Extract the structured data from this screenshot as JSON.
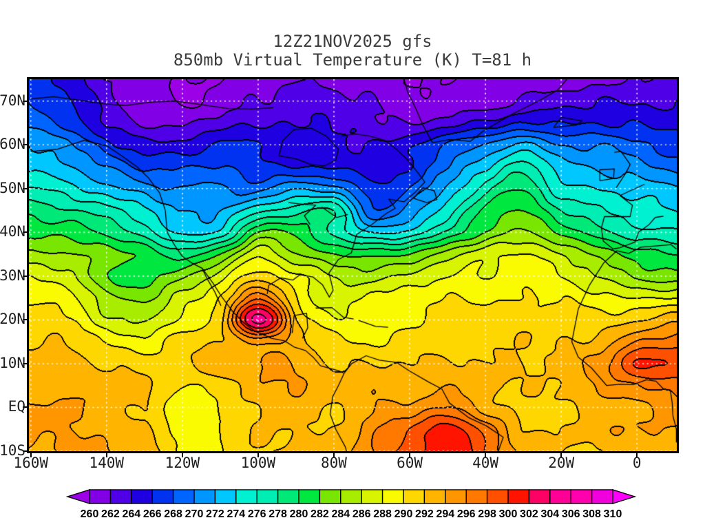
{
  "page": {
    "background": "#FFFFFF"
  },
  "chart_data": {
    "type": "heatmap",
    "title_line1": "12Z21NOV2025 gfs",
    "title_line2": "850mb Virtual Temperature (K) T=81 h",
    "model": "gfs",
    "valid_time": "12Z21NOV2025",
    "level": "850mb",
    "variable": "Virtual Temperature (K)",
    "forecast_hour": "T=81 h",
    "lon_range": [
      -160.5,
      10.5
    ],
    "lat_range": [
      -10,
      75
    ],
    "grid_lines": {
      "lat_interval": 10,
      "lon_interval": 20,
      "style": "dotted-white"
    },
    "x_ticks": [
      {
        "label": "160W",
        "lon": -160
      },
      {
        "label": "140W",
        "lon": -140
      },
      {
        "label": "120W",
        "lon": -120
      },
      {
        "label": "100W",
        "lon": -100
      },
      {
        "label": "80W",
        "lon": -80
      },
      {
        "label": "60W",
        "lon": -60
      },
      {
        "label": "40W",
        "lon": -40
      },
      {
        "label": "20W",
        "lon": -20
      },
      {
        "label": "0",
        "lon": 0
      }
    ],
    "y_ticks": [
      {
        "label": "70N",
        "lat": 70
      },
      {
        "label": "60N",
        "lat": 60
      },
      {
        "label": "50N",
        "lat": 50
      },
      {
        "label": "40N",
        "lat": 40
      },
      {
        "label": "30N",
        "lat": 30
      },
      {
        "label": "20N",
        "lat": 20
      },
      {
        "label": "10N",
        "lat": 10
      },
      {
        "label": "EQ",
        "lat": 0
      },
      {
        "label": "10S",
        "lat": -10
      }
    ],
    "colorbar": {
      "units": "K",
      "levels": [
        260,
        262,
        264,
        266,
        268,
        270,
        272,
        274,
        276,
        278,
        280,
        282,
        284,
        286,
        288,
        290,
        292,
        294,
        296,
        298,
        300,
        302,
        304,
        306,
        308,
        310
      ],
      "colors": [
        "#9C00E6",
        "#8200E6",
        "#5000E6",
        "#1E00E0",
        "#0032F0",
        "#0064FF",
        "#0096FF",
        "#00C8FF",
        "#00F0D2",
        "#00EEB4",
        "#00E878",
        "#00E840",
        "#78E600",
        "#A8EC00",
        "#D8F400",
        "#FAFA00",
        "#FFD700",
        "#FFB400",
        "#FF9600",
        "#FF7800",
        "#FF5000",
        "#FF1400",
        "#FF0064",
        "#FF0096",
        "#FF00AF",
        "#F000DC",
        "#FF00FF"
      ]
    },
    "field": {
      "lons": [
        -160,
        -150,
        -140,
        -130,
        -120,
        -110,
        -100,
        -90,
        -80,
        -70,
        -60,
        -50,
        -40,
        -30,
        -20,
        -10,
        0,
        10
      ],
      "lats": [
        75,
        70,
        65,
        60,
        55,
        50,
        45,
        40,
        35,
        30,
        25,
        20,
        15,
        10,
        5,
        0,
        -5,
        -10
      ],
      "values": [
        [
          267,
          265,
          262,
          261,
          260,
          260,
          261,
          262,
          261,
          261,
          260,
          260,
          261,
          261,
          261,
          261,
          262,
          262
        ],
        [
          268,
          266,
          263,
          261,
          260,
          261,
          262,
          263,
          263,
          262,
          261,
          261,
          261,
          262,
          263,
          264,
          264,
          264
        ],
        [
          270,
          267,
          264,
          262,
          262,
          263,
          264,
          264,
          264,
          263,
          262,
          263,
          265,
          266,
          266,
          266,
          266,
          265
        ],
        [
          272,
          270,
          267,
          265,
          265,
          266,
          266,
          265,
          265,
          264,
          266,
          268,
          270,
          272,
          270,
          270,
          269,
          267
        ],
        [
          274,
          272,
          270,
          268,
          268,
          268,
          267,
          266,
          266,
          265,
          266,
          270,
          274,
          277,
          273,
          272,
          271,
          269
        ],
        [
          276,
          275,
          273,
          271,
          270,
          270,
          269,
          272,
          271,
          267,
          268,
          272,
          277,
          280,
          275,
          274,
          273,
          272
        ],
        [
          279,
          278,
          277,
          274,
          272,
          272,
          275,
          277,
          278,
          268,
          271,
          275,
          280,
          282,
          278,
          276,
          275,
          274
        ],
        [
          281,
          281,
          280,
          277,
          274,
          274,
          282,
          281,
          278,
          274,
          275,
          278,
          282,
          284,
          282,
          279,
          277,
          276
        ],
        [
          284,
          284,
          283,
          281,
          279,
          282,
          287,
          284,
          282,
          281,
          282,
          285,
          287,
          288,
          286,
          283,
          281,
          280
        ],
        [
          288,
          286,
          282,
          281,
          284,
          287,
          291,
          288,
          286,
          285,
          287,
          288,
          288,
          289,
          288,
          286,
          284,
          283
        ],
        [
          290,
          289,
          285,
          284,
          287,
          290,
          298,
          290,
          287,
          289,
          289,
          290,
          290,
          290,
          290,
          289,
          288,
          288
        ],
        [
          291,
          290,
          287,
          286,
          289,
          291,
          305,
          292,
          289,
          289,
          290,
          290,
          291,
          291,
          291,
          291,
          292,
          293
        ],
        [
          292,
          292,
          290,
          289,
          291,
          292,
          295,
          293,
          291,
          290,
          291,
          291,
          292,
          292,
          292,
          293,
          296,
          297
        ],
        [
          293,
          293,
          292,
          291,
          291,
          293,
          294,
          294,
          292,
          292,
          292,
          292,
          292,
          292,
          293,
          295,
          300,
          299
        ],
        [
          293,
          293,
          293,
          292,
          290,
          291,
          293,
          294,
          293,
          293,
          293,
          294,
          292,
          292,
          292,
          294,
          296,
          297
        ],
        [
          294,
          294,
          293,
          292,
          289,
          290,
          292,
          293,
          292,
          294,
          295,
          296,
          293,
          291,
          292,
          293,
          294,
          295
        ],
        [
          294,
          294,
          293,
          292,
          289,
          290,
          292,
          292,
          292,
          295,
          298,
          301,
          297,
          292,
          292,
          293,
          294,
          294
        ],
        [
          294,
          294,
          294,
          293,
          290,
          290,
          292,
          292,
          293,
          296,
          299,
          302,
          298,
          293,
          292,
          292,
          293,
          294
        ]
      ]
    },
    "coastlines": [
      [
        [
          -160,
          58.5
        ],
        [
          -153,
          59
        ],
        [
          -146,
          61
        ],
        [
          -140,
          59.8
        ],
        [
          -136,
          57.5
        ],
        [
          -132,
          55
        ],
        [
          -129,
          52.5
        ],
        [
          -126,
          49
        ],
        [
          -124.5,
          45
        ],
        [
          -124,
          40
        ],
        [
          -122,
          37
        ],
        [
          -120,
          34.5
        ],
        [
          -117.5,
          33
        ],
        [
          -114.8,
          31.8
        ],
        [
          -112,
          28.5
        ],
        [
          -109.8,
          25.5
        ],
        [
          -106.8,
          22
        ],
        [
          -104,
          19.5
        ],
        [
          -101,
          17.5
        ],
        [
          -96.5,
          15.8
        ],
        [
          -93,
          15.2
        ],
        [
          -90.5,
          13.8
        ],
        [
          -87.5,
          13
        ],
        [
          -85.5,
          11.5
        ],
        [
          -83.5,
          9.5
        ],
        [
          -80.5,
          8.8
        ],
        [
          -78.5,
          8.3
        ],
        [
          -77.3,
          7.8
        ]
      ],
      [
        [
          -114.8,
          31.8
        ],
        [
          -113.5,
          29.5
        ],
        [
          -111.5,
          26.5
        ],
        [
          -109.8,
          23.2
        ]
      ],
      [
        [
          -77.3,
          7.8
        ],
        [
          -78.8,
          5
        ],
        [
          -80.3,
          2.5
        ],
        [
          -81,
          -1.5
        ],
        [
          -79.5,
          -5
        ],
        [
          -77,
          -9
        ],
        [
          -76,
          -12
        ]
      ],
      [
        [
          -77.3,
          7.8
        ],
        [
          -75.3,
          10
        ],
        [
          -71.5,
          11.8
        ],
        [
          -68,
          10.8
        ],
        [
          -63.5,
          10.3
        ],
        [
          -60,
          8.3
        ],
        [
          -55,
          5.8
        ],
        [
          -51.5,
          4.2
        ],
        [
          -49.5,
          1
        ],
        [
          -44.5,
          -2.3
        ],
        [
          -39.8,
          -4.2
        ],
        [
          -35.3,
          -6.8
        ],
        [
          -36.8,
          -10.5
        ],
        [
          -38.8,
          -13
        ]
      ],
      [
        [
          -97.6,
          25.9
        ],
        [
          -97.2,
          27.9
        ],
        [
          -94,
          29.6
        ],
        [
          -90.8,
          29.1
        ],
        [
          -89,
          30.3
        ],
        [
          -85.5,
          29.8
        ],
        [
          -83,
          28
        ],
        [
          -81.2,
          25.2
        ],
        [
          -80.2,
          26.8
        ],
        [
          -81.3,
          30.7
        ],
        [
          -78.8,
          33.8
        ],
        [
          -75.4,
          35.3
        ],
        [
          -74,
          39.5
        ],
        [
          -70.3,
          41.6
        ],
        [
          -66.2,
          44.3
        ],
        [
          -63.8,
          45.5
        ],
        [
          -65.5,
          47.6
        ],
        [
          -61.5,
          47
        ],
        [
          -58.5,
          49.2
        ],
        [
          -56,
          51.5
        ],
        [
          -58,
          53.8
        ],
        [
          -60.5,
          56.5
        ],
        [
          -63.5,
          59
        ],
        [
          -66.5,
          61
        ],
        [
          -70.5,
          62
        ],
        [
          -74.5,
          62.5
        ],
        [
          -78,
          62
        ]
      ],
      [
        [
          -94.5,
          57.5
        ],
        [
          -90,
          56.8
        ],
        [
          -86,
          55.5
        ],
        [
          -82.5,
          55.2
        ],
        [
          -79.5,
          56.5
        ],
        [
          -78.8,
          59
        ],
        [
          -82,
          62
        ],
        [
          -86,
          63.8
        ],
        [
          -90.5,
          63.5
        ],
        [
          -93.5,
          61
        ],
        [
          -94.5,
          57.5
        ]
      ],
      [
        [
          -59,
          47.8
        ],
        [
          -55.5,
          46.8
        ],
        [
          -52.8,
          47.5
        ],
        [
          -53.5,
          49.5
        ],
        [
          -56.5,
          50.2
        ],
        [
          -59,
          47.8
        ]
      ],
      [
        [
          -92,
          46.8
        ],
        [
          -88,
          46.4
        ],
        [
          -84.8,
          46.2
        ],
        [
          -87.8,
          43.8
        ],
        [
          -86.3,
          41.8
        ]
      ],
      [
        [
          -83.2,
          45.8
        ],
        [
          -79.3,
          43.4
        ],
        [
          -76.3,
          44.1
        ]
      ],
      [
        [
          -54,
          60.5
        ],
        [
          -49.5,
          61.2
        ],
        [
          -44,
          60.8
        ],
        [
          -40.5,
          63.2
        ],
        [
          -33,
          67
        ],
        [
          -26,
          70
        ],
        [
          -21,
          72.5
        ],
        [
          -18.5,
          75
        ]
      ],
      [
        [
          -54,
          60.5
        ],
        [
          -56.5,
          64.5
        ],
        [
          -58.5,
          68.5
        ],
        [
          -60.5,
          72
        ],
        [
          -61.5,
          75
        ]
      ],
      [
        [
          -160,
          70.5
        ],
        [
          -154,
          71
        ],
        [
          -148,
          70.3
        ],
        [
          -141,
          69.4
        ],
        [
          -135,
          69
        ],
        [
          -128,
          69.8
        ],
        [
          -122,
          70
        ],
        [
          -115,
          69.2
        ],
        [
          -108,
          68.3
        ],
        [
          -101,
          68.2
        ],
        [
          -96,
          68.5
        ]
      ],
      [
        [
          -84.8,
          22.7
        ],
        [
          -80.5,
          22.8
        ],
        [
          -77.5,
          20.6
        ],
        [
          -74.8,
          20.2
        ]
      ],
      [
        [
          -73.5,
          19.9
        ],
        [
          -69,
          18.5
        ],
        [
          -65.7,
          18.3
        ]
      ],
      [
        [
          -91,
          17
        ],
        [
          -90.5,
          21
        ],
        [
          -87.2,
          21.5
        ],
        [
          -86.9,
          18.2
        ],
        [
          -88.3,
          15.8
        ]
      ],
      [
        [
          -5.5,
          50.2
        ],
        [
          -3,
          53.5
        ],
        [
          -1.8,
          55.5
        ],
        [
          -4.2,
          58.5
        ],
        [
          -6,
          58.3
        ]
      ],
      [
        [
          -9.8,
          51.8
        ],
        [
          -6.2,
          52.3
        ],
        [
          -6,
          54.5
        ],
        [
          -9.8,
          54.3
        ],
        [
          -9.8,
          51.8
        ]
      ],
      [
        [
          2,
          51
        ],
        [
          -1.8,
          49.5
        ],
        [
          -4.5,
          48.4
        ],
        [
          -1.2,
          46.2
        ],
        [
          -1.8,
          43.6
        ],
        [
          -8.6,
          43.6
        ],
        [
          -9.4,
          41
        ],
        [
          -8.9,
          38
        ],
        [
          -6.3,
          36.2
        ],
        [
          -4.5,
          36.5
        ],
        [
          -0.5,
          37.8
        ],
        [
          0.4,
          40
        ],
        [
          3.2,
          41.8
        ],
        [
          4.8,
          43.4
        ],
        [
          7,
          43.7
        ]
      ],
      [
        [
          -5.3,
          35.8
        ],
        [
          -8.8,
          33
        ],
        [
          -12.5,
          28
        ],
        [
          -15.5,
          22.5
        ],
        [
          -17.2,
          15
        ],
        [
          -15.5,
          11.5
        ],
        [
          -12,
          9
        ],
        [
          -8,
          5
        ],
        [
          -4.5,
          5.3
        ],
        [
          -1,
          5.2
        ],
        [
          2.5,
          6.3
        ],
        [
          5,
          6
        ],
        [
          7,
          4.2
        ],
        [
          8.8,
          4
        ],
        [
          9.3,
          1
        ],
        [
          9.5,
          -2
        ],
        [
          10.4,
          -5
        ],
        [
          10.4,
          -8
        ]
      ],
      [
        [
          -5.3,
          35.8
        ],
        [
          -2.2,
          35.2
        ],
        [
          1,
          36.6
        ],
        [
          5,
          36.9
        ],
        [
          9,
          37.2
        ],
        [
          10.4,
          36.2
        ]
      ],
      [
        [
          -22,
          64
        ],
        [
          -16,
          64.5
        ],
        [
          -14.5,
          65.5
        ],
        [
          -20,
          66.3
        ],
        [
          -22,
          64
        ]
      ]
    ]
  }
}
